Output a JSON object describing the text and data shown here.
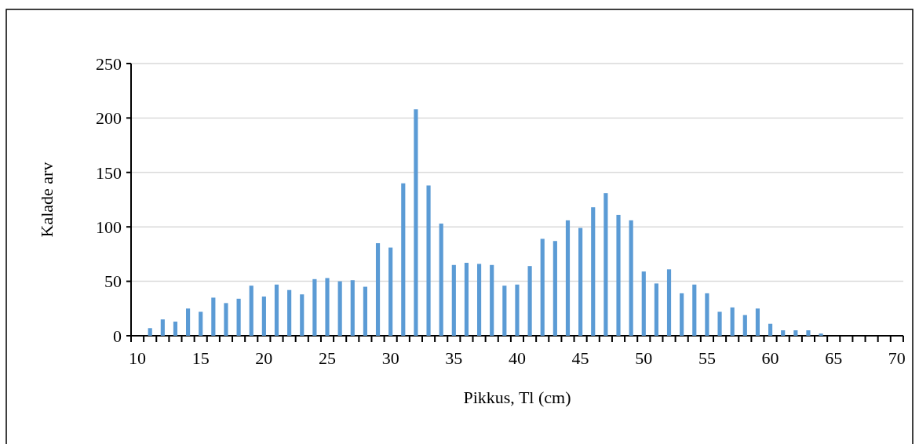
{
  "chart_data": {
    "type": "bar",
    "xlabel": "Pikkus, Tl (cm)",
    "ylabel": "Kalade arv",
    "categories": [
      "10",
      null,
      null,
      null,
      null,
      "15",
      null,
      null,
      null,
      null,
      "20",
      null,
      null,
      null,
      null,
      "25",
      null,
      null,
      null,
      null,
      "30",
      null,
      null,
      null,
      null,
      "35",
      null,
      null,
      null,
      null,
      "40",
      null,
      null,
      null,
      null,
      "45",
      null,
      null,
      null,
      null,
      "50",
      null,
      null,
      null,
      null,
      "55",
      null,
      null,
      null,
      null,
      "60",
      null,
      null,
      null,
      null,
      "65",
      null,
      null,
      null,
      null,
      "70"
    ],
    "values": [
      0,
      7,
      15,
      13,
      25,
      22,
      35,
      30,
      34,
      46,
      36,
      47,
      42,
      38,
      52,
      53,
      50,
      51,
      45,
      85,
      81,
      140,
      208,
      138,
      103,
      65,
      67,
      66,
      65,
      46,
      47,
      64,
      89,
      87,
      106,
      99,
      118,
      131,
      111,
      106,
      59,
      48,
      61,
      39,
      47,
      39,
      22,
      26,
      19,
      25,
      11,
      5,
      5,
      5,
      2,
      0,
      0,
      0,
      0,
      0,
      0
    ],
    "color": "#5b9bd5",
    "ylim": [
      0,
      250
    ],
    "yticks": [
      0,
      50,
      100,
      150,
      200,
      250
    ],
    "grid": "y"
  }
}
